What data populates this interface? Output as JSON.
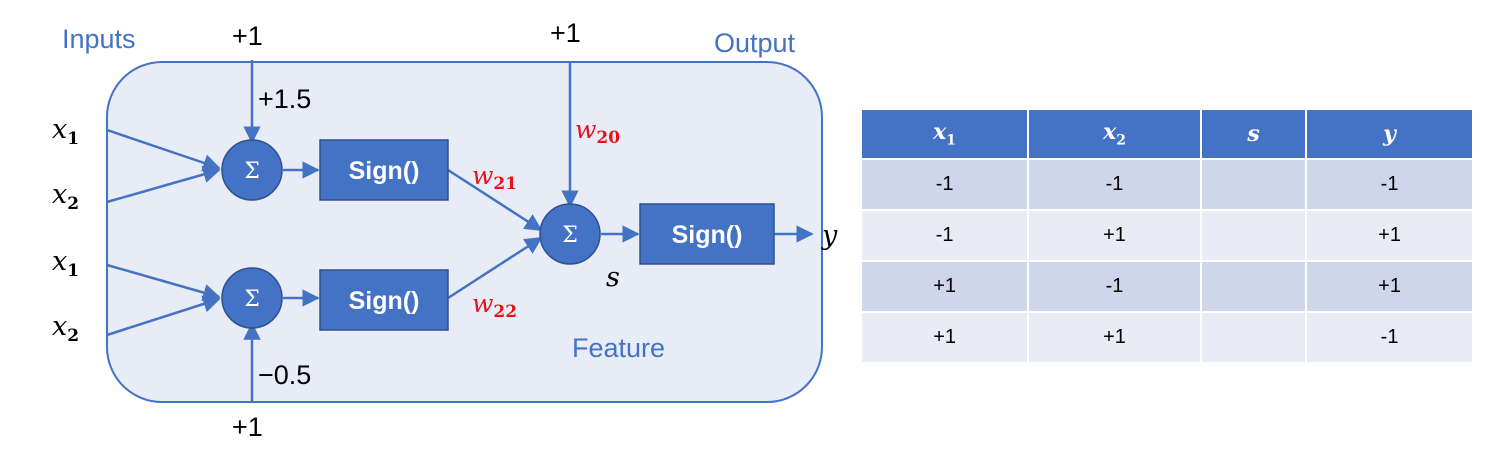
{
  "diagram": {
    "inputs_label": "Inputs",
    "output_label": "Output",
    "feature_label": "Feature",
    "bias_top": "+1",
    "bias_mid_top": "+1",
    "bias_bottom": "+1",
    "weight_top": "+1.5",
    "weight_bottom": "−0.5",
    "input_x1_a": "x",
    "input_x2_a": "x",
    "input_x1_b": "x",
    "input_x2_b": "x",
    "sub_1": "1",
    "sub_2": "2",
    "sum_symbol": "Σ",
    "sign_label": "Sign()",
    "w20": "w",
    "w20_sub": "20",
    "w21": "w",
    "w21_sub": "21",
    "w22": "w",
    "w22_sub": "22",
    "s_label": "s",
    "y_label": "y"
  },
  "table": {
    "headers": [
      {
        "base": "x",
        "sub": "1"
      },
      {
        "base": "x",
        "sub": "2"
      },
      {
        "base": "s",
        "sub": ""
      },
      {
        "base": "y",
        "sub": ""
      }
    ],
    "rows": [
      [
        "-1",
        "-1",
        "",
        "-1"
      ],
      [
        "-1",
        "+1",
        "",
        "+1"
      ],
      [
        "+1",
        "-1",
        "",
        "+1"
      ],
      [
        "+1",
        "+1",
        "",
        "-1"
      ]
    ]
  },
  "colors": {
    "accent": "#4472c4",
    "panel": "#e8ecf6",
    "weight_red": "#e8121b",
    "row_dark": "#cfd5ea",
    "row_light": "#e9ebf5"
  }
}
